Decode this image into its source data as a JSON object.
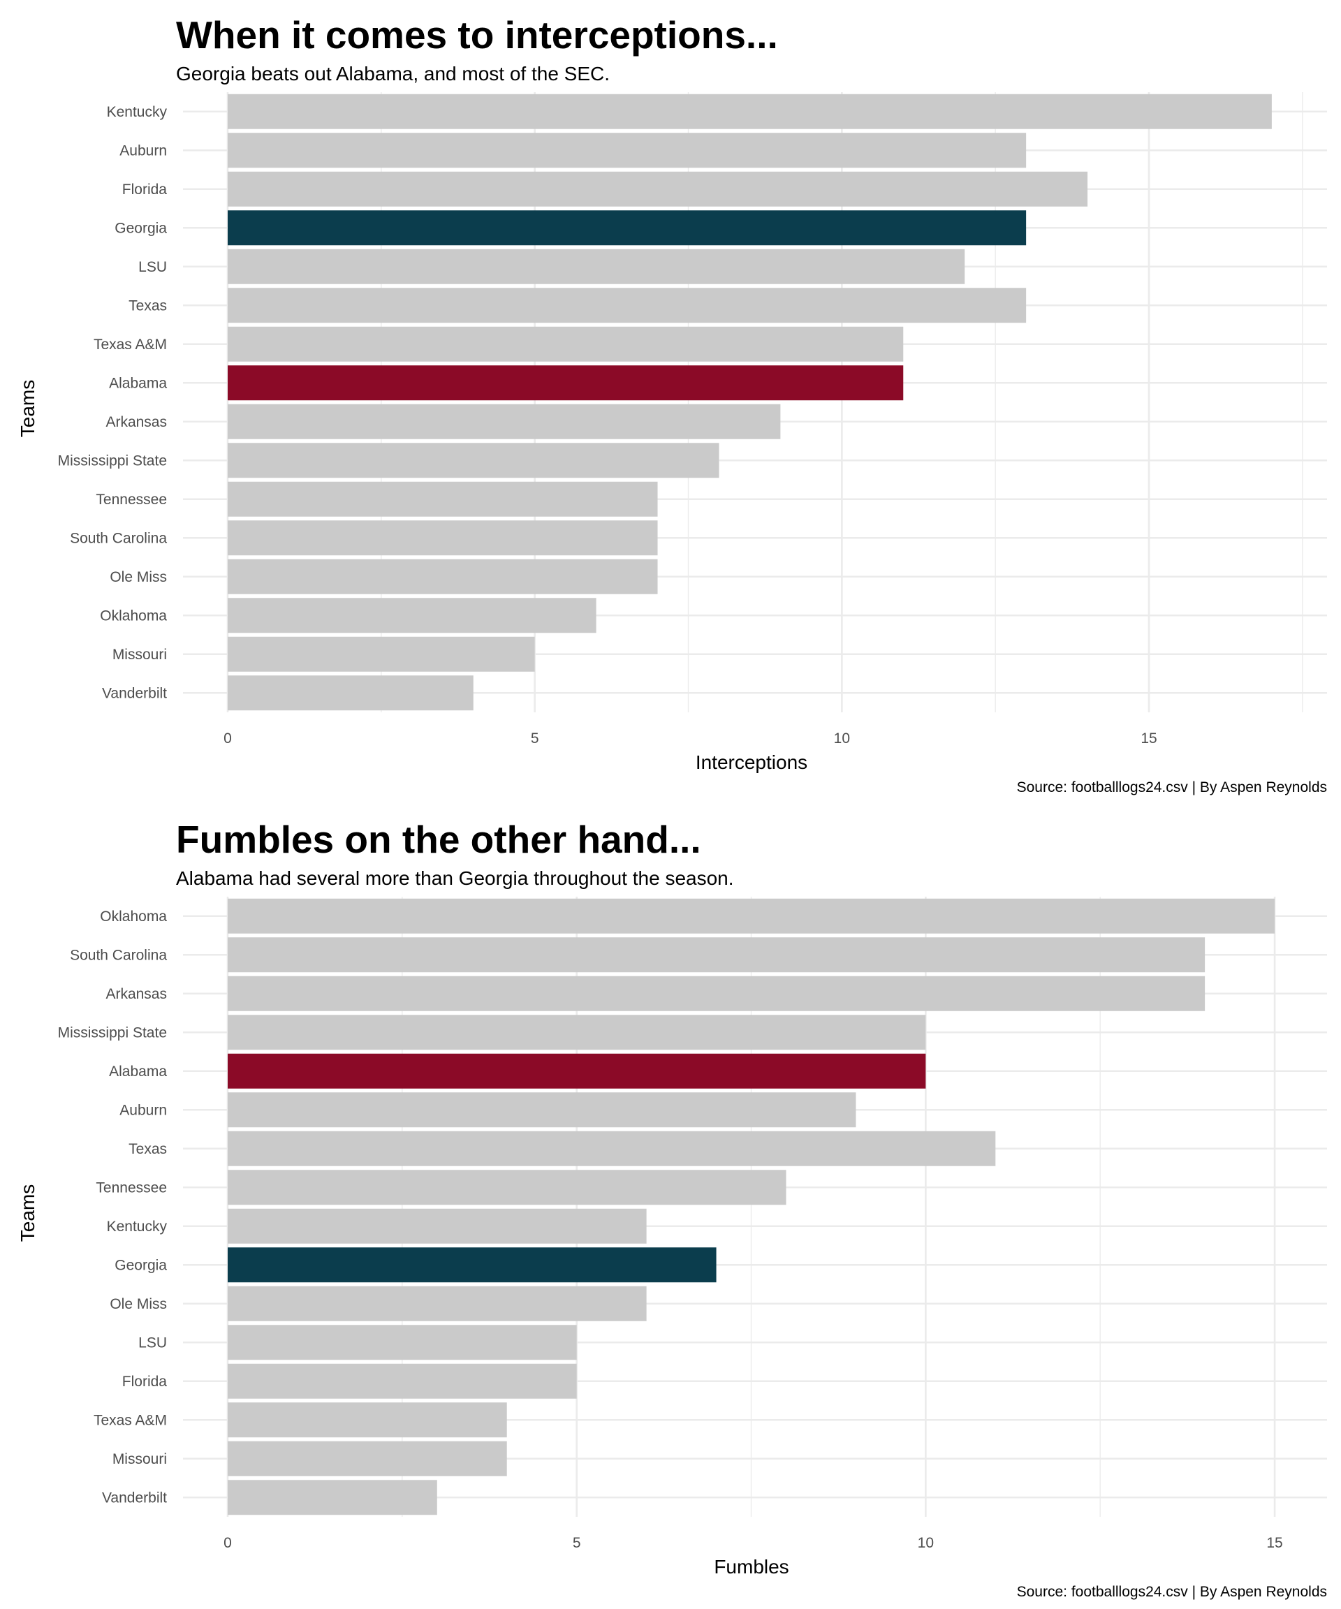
{
  "chart_data": [
    {
      "type": "bar",
      "orientation": "horizontal",
      "title": "When it comes to interceptions...",
      "subtitle": "Georgia beats out Alabama, and most of the SEC.",
      "caption": "Source: footballlogs24.csv | By Aspen Reynolds",
      "xlabel": "Interceptions",
      "ylabel": "Teams",
      "xlim": [
        0,
        17.9
      ],
      "x_ticks": [
        0,
        5,
        10,
        15
      ],
      "grid": true,
      "categories": [
        "Kentucky",
        "Auburn",
        "Florida",
        "Georgia",
        "LSU",
        "Texas",
        "Texas A&M",
        "Alabama",
        "Arkansas",
        "Mississippi State",
        "Tennessee",
        "South Carolina",
        "Ole Miss",
        "Oklahoma",
        "Missouri",
        "Vanderbilt"
      ],
      "values": [
        17,
        13,
        14,
        13,
        12,
        13,
        11,
        11,
        9,
        8,
        7,
        7,
        7,
        6,
        5,
        4
      ],
      "colors": {
        "default": "#cacaca",
        "Georgia": "#0b3d4d",
        "Alabama": "#8b0a27"
      }
    },
    {
      "type": "bar",
      "orientation": "horizontal",
      "title": "Fumbles on the other hand...",
      "subtitle": "Alabama had several more than Georgia throughout the season.",
      "caption": "Source: footballlogs24.csv | By Aspen Reynolds",
      "xlabel": "Fumbles",
      "ylabel": "Teams",
      "xlim": [
        0,
        15.75
      ],
      "x_ticks": [
        0,
        5,
        10,
        15
      ],
      "grid": true,
      "categories": [
        "Oklahoma",
        "South Carolina",
        "Arkansas",
        "Mississippi State",
        "Alabama",
        "Auburn",
        "Texas",
        "Tennessee",
        "Kentucky",
        "Georgia",
        "Ole Miss",
        "LSU",
        "Florida",
        "Texas A&M",
        "Missouri",
        "Vanderbilt"
      ],
      "values": [
        15,
        14,
        14,
        10,
        10,
        9,
        11,
        8,
        6,
        7,
        6,
        5,
        5,
        4,
        4,
        3
      ],
      "colors": {
        "default": "#cacaca",
        "Georgia": "#0b3d4d",
        "Alabama": "#8b0a27"
      }
    }
  ]
}
